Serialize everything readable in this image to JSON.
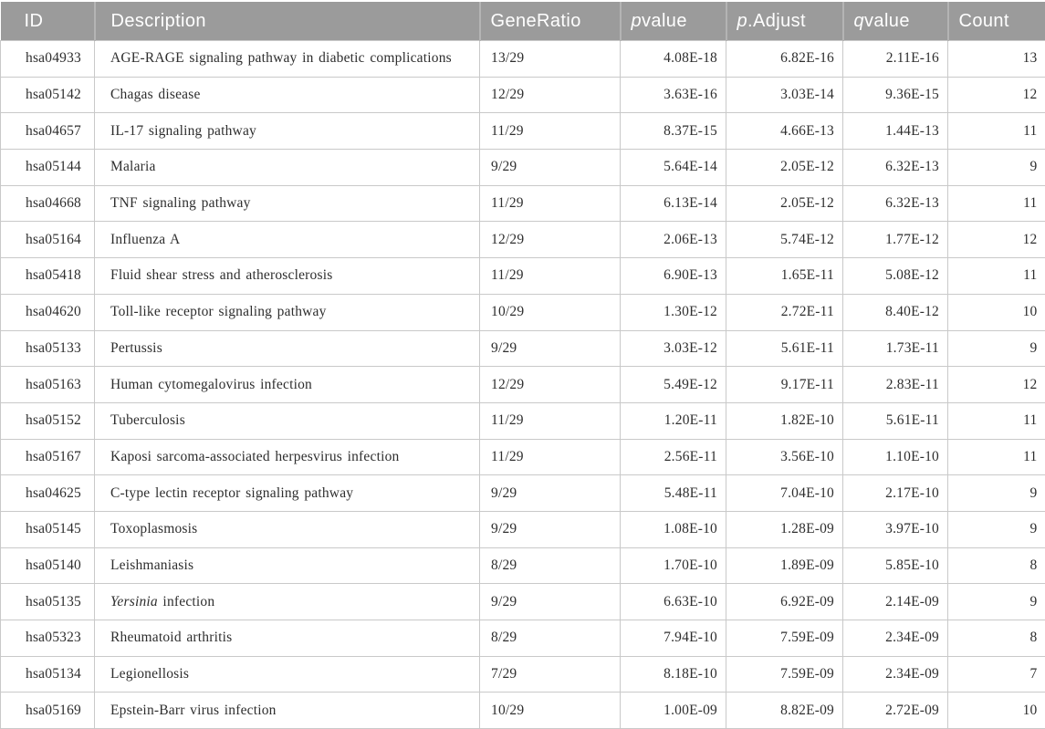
{
  "colors": {
    "header_background": "#9b9b9b",
    "header_text": "#ffffff",
    "header_separator": "#b4b4b4",
    "body_border": "#c9c9c9",
    "body_text": "#2e2e2e"
  },
  "table": {
    "header": [
      {
        "italic": "",
        "text": "ID"
      },
      {
        "italic": "",
        "text": "Description"
      },
      {
        "italic": "",
        "text": "GeneRatio"
      },
      {
        "italic": "p",
        "text": "value"
      },
      {
        "italic": "p",
        "text": ".Adjust"
      },
      {
        "italic": "q",
        "text": "value"
      },
      {
        "italic": "",
        "text": "Count"
      }
    ],
    "rows": [
      {
        "id": "hsa04933",
        "desc_italic": "",
        "desc": "AGE-RAGE signaling pathway in diabetic complications",
        "gene_ratio": "13/29",
        "pvalue": "4.08E-18",
        "p_adjust": "6.82E-16",
        "qvalue": "2.11E-16",
        "count": "13"
      },
      {
        "id": "hsa05142",
        "desc_italic": "",
        "desc": "Chagas disease",
        "gene_ratio": "12/29",
        "pvalue": "3.63E-16",
        "p_adjust": "3.03E-14",
        "qvalue": "9.36E-15",
        "count": "12"
      },
      {
        "id": "hsa04657",
        "desc_italic": "",
        "desc": "IL-17 signaling pathway",
        "gene_ratio": "11/29",
        "pvalue": "8.37E-15",
        "p_adjust": "4.66E-13",
        "qvalue": "1.44E-13",
        "count": "11"
      },
      {
        "id": "hsa05144",
        "desc_italic": "",
        "desc": "Malaria",
        "gene_ratio": "9/29",
        "pvalue": "5.64E-14",
        "p_adjust": "2.05E-12",
        "qvalue": "6.32E-13",
        "count": "9"
      },
      {
        "id": "hsa04668",
        "desc_italic": "",
        "desc": "TNF signaling pathway",
        "gene_ratio": "11/29",
        "pvalue": "6.13E-14",
        "p_adjust": "2.05E-12",
        "qvalue": "6.32E-13",
        "count": "11"
      },
      {
        "id": "hsa05164",
        "desc_italic": "",
        "desc": "Influenza A",
        "gene_ratio": "12/29",
        "pvalue": "2.06E-13",
        "p_adjust": "5.74E-12",
        "qvalue": "1.77E-12",
        "count": "12"
      },
      {
        "id": "hsa05418",
        "desc_italic": "",
        "desc": "Fluid shear stress and atherosclerosis",
        "gene_ratio": "11/29",
        "pvalue": "6.90E-13",
        "p_adjust": "1.65E-11",
        "qvalue": "5.08E-12",
        "count": "11"
      },
      {
        "id": "hsa04620",
        "desc_italic": "",
        "desc": "Toll-like receptor signaling pathway",
        "gene_ratio": "10/29",
        "pvalue": "1.30E-12",
        "p_adjust": "2.72E-11",
        "qvalue": "8.40E-12",
        "count": "10"
      },
      {
        "id": "hsa05133",
        "desc_italic": "",
        "desc": "Pertussis",
        "gene_ratio": "9/29",
        "pvalue": "3.03E-12",
        "p_adjust": "5.61E-11",
        "qvalue": "1.73E-11",
        "count": "9"
      },
      {
        "id": "hsa05163",
        "desc_italic": "",
        "desc": "Human cytomegalovirus infection",
        "gene_ratio": "12/29",
        "pvalue": "5.49E-12",
        "p_adjust": "9.17E-11",
        "qvalue": "2.83E-11",
        "count": "12"
      },
      {
        "id": "hsa05152",
        "desc_italic": "",
        "desc": "Tuberculosis",
        "gene_ratio": "11/29",
        "pvalue": "1.20E-11",
        "p_adjust": "1.82E-10",
        "qvalue": "5.61E-11",
        "count": "11"
      },
      {
        "id": "hsa05167",
        "desc_italic": "",
        "desc": "Kaposi sarcoma-associated herpesvirus infection",
        "gene_ratio": "11/29",
        "pvalue": "2.56E-11",
        "p_adjust": "3.56E-10",
        "qvalue": "1.10E-10",
        "count": "11"
      },
      {
        "id": "hsa04625",
        "desc_italic": "",
        "desc": "C-type lectin receptor signaling pathway",
        "gene_ratio": "9/29",
        "pvalue": "5.48E-11",
        "p_adjust": "7.04E-10",
        "qvalue": "2.17E-10",
        "count": "9"
      },
      {
        "id": "hsa05145",
        "desc_italic": "",
        "desc": "Toxoplasmosis",
        "gene_ratio": "9/29",
        "pvalue": "1.08E-10",
        "p_adjust": "1.28E-09",
        "qvalue": "3.97E-10",
        "count": "9"
      },
      {
        "id": "hsa05140",
        "desc_italic": "",
        "desc": "Leishmaniasis",
        "gene_ratio": "8/29",
        "pvalue": "1.70E-10",
        "p_adjust": "1.89E-09",
        "qvalue": "5.85E-10",
        "count": "8"
      },
      {
        "id": "hsa05135",
        "desc_italic": "Yersinia",
        "desc": " infection",
        "gene_ratio": "9/29",
        "pvalue": "6.63E-10",
        "p_adjust": "6.92E-09",
        "qvalue": "2.14E-09",
        "count": "9"
      },
      {
        "id": "hsa05323",
        "desc_italic": "",
        "desc": "Rheumatoid arthritis",
        "gene_ratio": "8/29",
        "pvalue": "7.94E-10",
        "p_adjust": "7.59E-09",
        "qvalue": "2.34E-09",
        "count": "8"
      },
      {
        "id": "hsa05134",
        "desc_italic": "",
        "desc": "Legionellosis",
        "gene_ratio": "7/29",
        "pvalue": "8.18E-10",
        "p_adjust": "7.59E-09",
        "qvalue": "2.34E-09",
        "count": "7"
      },
      {
        "id": "hsa05169",
        "desc_italic": "",
        "desc": "Epstein-Barr virus infection",
        "gene_ratio": "10/29",
        "pvalue": "1.00E-09",
        "p_adjust": "8.82E-09",
        "qvalue": "2.72E-09",
        "count": "10"
      }
    ]
  }
}
